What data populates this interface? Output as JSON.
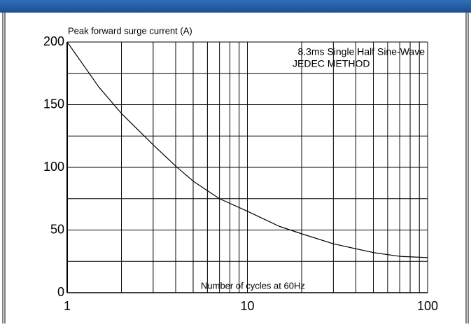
{
  "chart_data": {
    "type": "line",
    "y_label": "Peak forward surge current (A)",
    "x_label": "Number of cycles at 60Hz",
    "annotation": [
      "8.3ms Single Half Sine-Wave",
      "JEDEC METHOD"
    ],
    "x": [
      1,
      1.5,
      2,
      3,
      4,
      5,
      7,
      10,
      15,
      20,
      30,
      50,
      70,
      100
    ],
    "values": [
      200,
      164,
      143,
      118,
      101,
      89,
      75,
      65,
      53,
      47,
      39,
      32,
      29,
      28
    ],
    "color": "#000000",
    "xlog": true,
    "xlim": [
      1,
      100
    ],
    "xticks": [
      1,
      10,
      100
    ],
    "xminor": [
      2,
      3,
      4,
      5,
      6,
      7,
      8,
      9,
      20,
      30,
      40,
      50,
      60,
      70,
      80,
      90
    ],
    "ylim": [
      0,
      200
    ],
    "yticks": [
      0,
      50,
      100,
      150,
      200
    ],
    "yminor": [
      25,
      75,
      125,
      175
    ],
    "grid": true
  }
}
